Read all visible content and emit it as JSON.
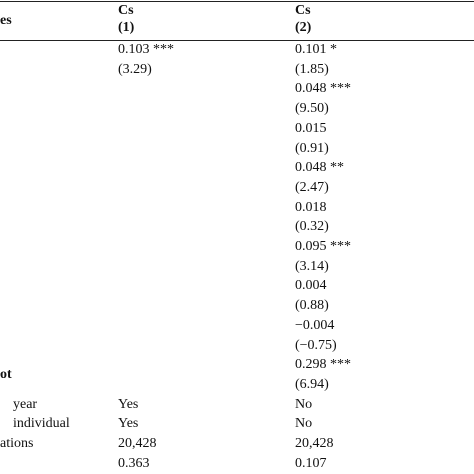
{
  "header": {
    "label": "es",
    "columns": [
      {
        "name": "Cs",
        "number": "(1)"
      },
      {
        "name": "Cs",
        "number": "(2)"
      }
    ]
  },
  "constant_label": "ot",
  "rows": [
    {
      "label": null,
      "cells": [
        "0.103 ***",
        "0.101 *"
      ]
    },
    {
      "label": null,
      "cells": [
        "(3.29)",
        "(1.85)"
      ]
    },
    {
      "label": null,
      "cells": [
        null,
        "0.048 ***"
      ]
    },
    {
      "label": null,
      "cells": [
        null,
        "(9.50)"
      ]
    },
    {
      "label": null,
      "cells": [
        null,
        "0.015"
      ]
    },
    {
      "label": null,
      "cells": [
        null,
        "(0.91)"
      ]
    },
    {
      "label": null,
      "cells": [
        null,
        "0.048 **"
      ]
    },
    {
      "label": null,
      "cells": [
        null,
        "(2.47)"
      ]
    },
    {
      "label": null,
      "cells": [
        null,
        "0.018"
      ]
    },
    {
      "label": null,
      "cells": [
        null,
        "(0.32)"
      ]
    },
    {
      "label": null,
      "cells": [
        null,
        "0.095 ***"
      ]
    },
    {
      "label": null,
      "cells": [
        null,
        "(3.14)"
      ]
    },
    {
      "label": null,
      "cells": [
        null,
        "0.004"
      ]
    },
    {
      "label": null,
      "cells": [
        null,
        "(0.88)"
      ]
    },
    {
      "label": null,
      "cells": [
        null,
        "−0.004"
      ]
    },
    {
      "label": null,
      "cells": [
        null,
        "(−0.75)"
      ]
    },
    {
      "label": null,
      "cells": [
        null,
        "0.298 ***"
      ]
    },
    {
      "label": null,
      "cells": [
        null,
        "(6.94)"
      ]
    },
    {
      "label": "year",
      "cells": [
        "Yes",
        "No"
      ]
    },
    {
      "label": "individual",
      "cells": [
        "Yes",
        "No"
      ]
    },
    {
      "label": "ations",
      "cells": [
        "20,428",
        "20,428"
      ]
    },
    {
      "label": null,
      "cells": [
        "0.363",
        "0.107"
      ]
    }
  ]
}
